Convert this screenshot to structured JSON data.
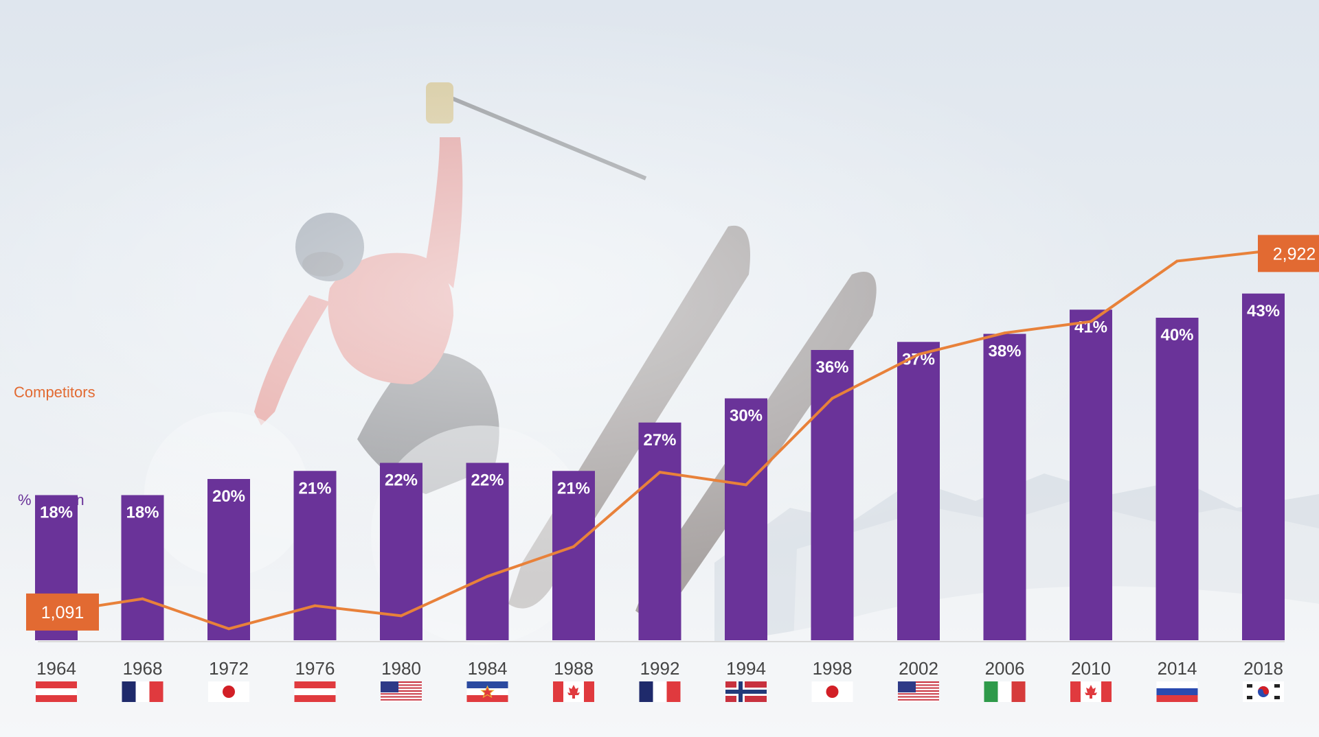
{
  "chart_data": {
    "type": "bar",
    "categories": [
      "1964",
      "1968",
      "1972",
      "1976",
      "1980",
      "1984",
      "1988",
      "1992",
      "1994",
      "1998",
      "2002",
      "2006",
      "2010",
      "2014",
      "2018"
    ],
    "host_flags": [
      "austria-flag",
      "france-flag",
      "japan-flag",
      "austria-flag",
      "usa-flag",
      "yugoslavia-flag",
      "canada-flag",
      "france-flag",
      "norway-flag",
      "japan-flag",
      "usa-flag",
      "italy-flag",
      "canada-flag",
      "russia-flag",
      "south-korea-flag"
    ],
    "series": [
      {
        "name": "% women",
        "type": "bar",
        "values": [
          18,
          18,
          20,
          21,
          22,
          22,
          21,
          27,
          30,
          36,
          37,
          38,
          41,
          40,
          43
        ],
        "labels": [
          "18%",
          "18%",
          "20%",
          "21%",
          "22%",
          "22%",
          "21%",
          "27%",
          "30%",
          "36%",
          "37%",
          "38%",
          "41%",
          "40%",
          "43%"
        ],
        "color": "#6a3399"
      },
      {
        "name": "Competitors",
        "type": "line",
        "values": [
          1091,
          1158,
          1006,
          1123,
          1072,
          1272,
          1423,
          1801,
          1737,
          2176,
          2399,
          2508,
          2566,
          2873,
          2922
        ],
        "color": "#e8813a",
        "callouts": [
          {
            "index": 0,
            "text": "1,091"
          },
          {
            "index": 14,
            "text": "2,922"
          }
        ],
        "callout_color": "#e26a32"
      }
    ],
    "title": "",
    "xlabel": "",
    "ylabel": "",
    "grid": false,
    "legend": "inline labels at left"
  }
}
